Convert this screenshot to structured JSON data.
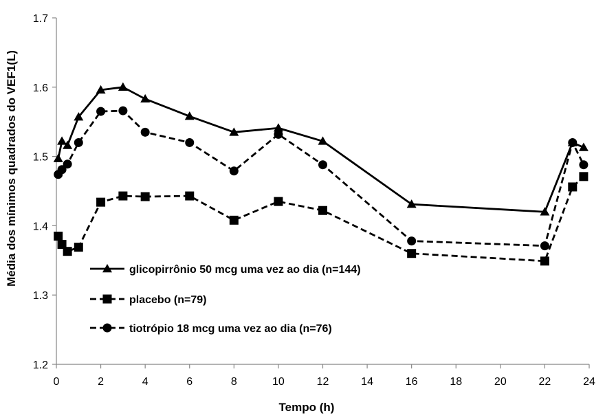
{
  "chart_data": {
    "type": "line",
    "title": "",
    "xlabel": "Tempo (h)",
    "ylabel": "Média dos mínimos quadrados do VEF1(L)",
    "xlim": [
      0,
      24
    ],
    "ylim": [
      1.2,
      1.7
    ],
    "xticks": [
      "0",
      "2",
      "4",
      "6",
      "8",
      "10",
      "12",
      "14",
      "16",
      "18",
      "20",
      "22",
      "24"
    ],
    "yticks": [
      "1.2",
      "1.3",
      "1.4",
      "1.5",
      "1.6",
      "1.7"
    ],
    "grid": false,
    "legend_position": "lower-left",
    "series": [
      {
        "name": "glicopirrônio 50 mcg uma vez ao dia (n=144)",
        "marker": "triangle",
        "line": "solid",
        "color": "#000000",
        "x": [
          0.083,
          0.25,
          0.5,
          1,
          2,
          3,
          4,
          6,
          8,
          10,
          12,
          16,
          22,
          23.25,
          23.75
        ],
        "y": [
          1.497,
          1.522,
          1.516,
          1.557,
          1.596,
          1.6,
          1.583,
          1.558,
          1.535,
          1.541,
          1.522,
          1.431,
          1.42,
          1.52,
          1.513
        ]
      },
      {
        "name": "placebo (n=79)",
        "marker": "square",
        "line": "dashed",
        "color": "#000000",
        "x": [
          0.083,
          0.25,
          0.5,
          1,
          2,
          3,
          4,
          6,
          8,
          10,
          12,
          16,
          22,
          23.25,
          23.75
        ],
        "y": [
          1.385,
          1.373,
          1.363,
          1.369,
          1.434,
          1.443,
          1.442,
          1.443,
          1.408,
          1.435,
          1.422,
          1.36,
          1.349,
          1.456,
          1.471
        ]
      },
      {
        "name": "tiotrópio 18 mcg uma vez ao dia (n=76)",
        "marker": "circle",
        "line": "dashed",
        "color": "#000000",
        "x": [
          0.083,
          0.25,
          0.5,
          1,
          2,
          3,
          4,
          6,
          8,
          10,
          12,
          16,
          22,
          23.25,
          23.75
        ],
        "y": [
          1.474,
          1.481,
          1.489,
          1.52,
          1.565,
          1.566,
          1.535,
          1.52,
          1.479,
          1.532,
          1.488,
          1.378,
          1.371,
          1.52,
          1.488
        ]
      }
    ]
  }
}
